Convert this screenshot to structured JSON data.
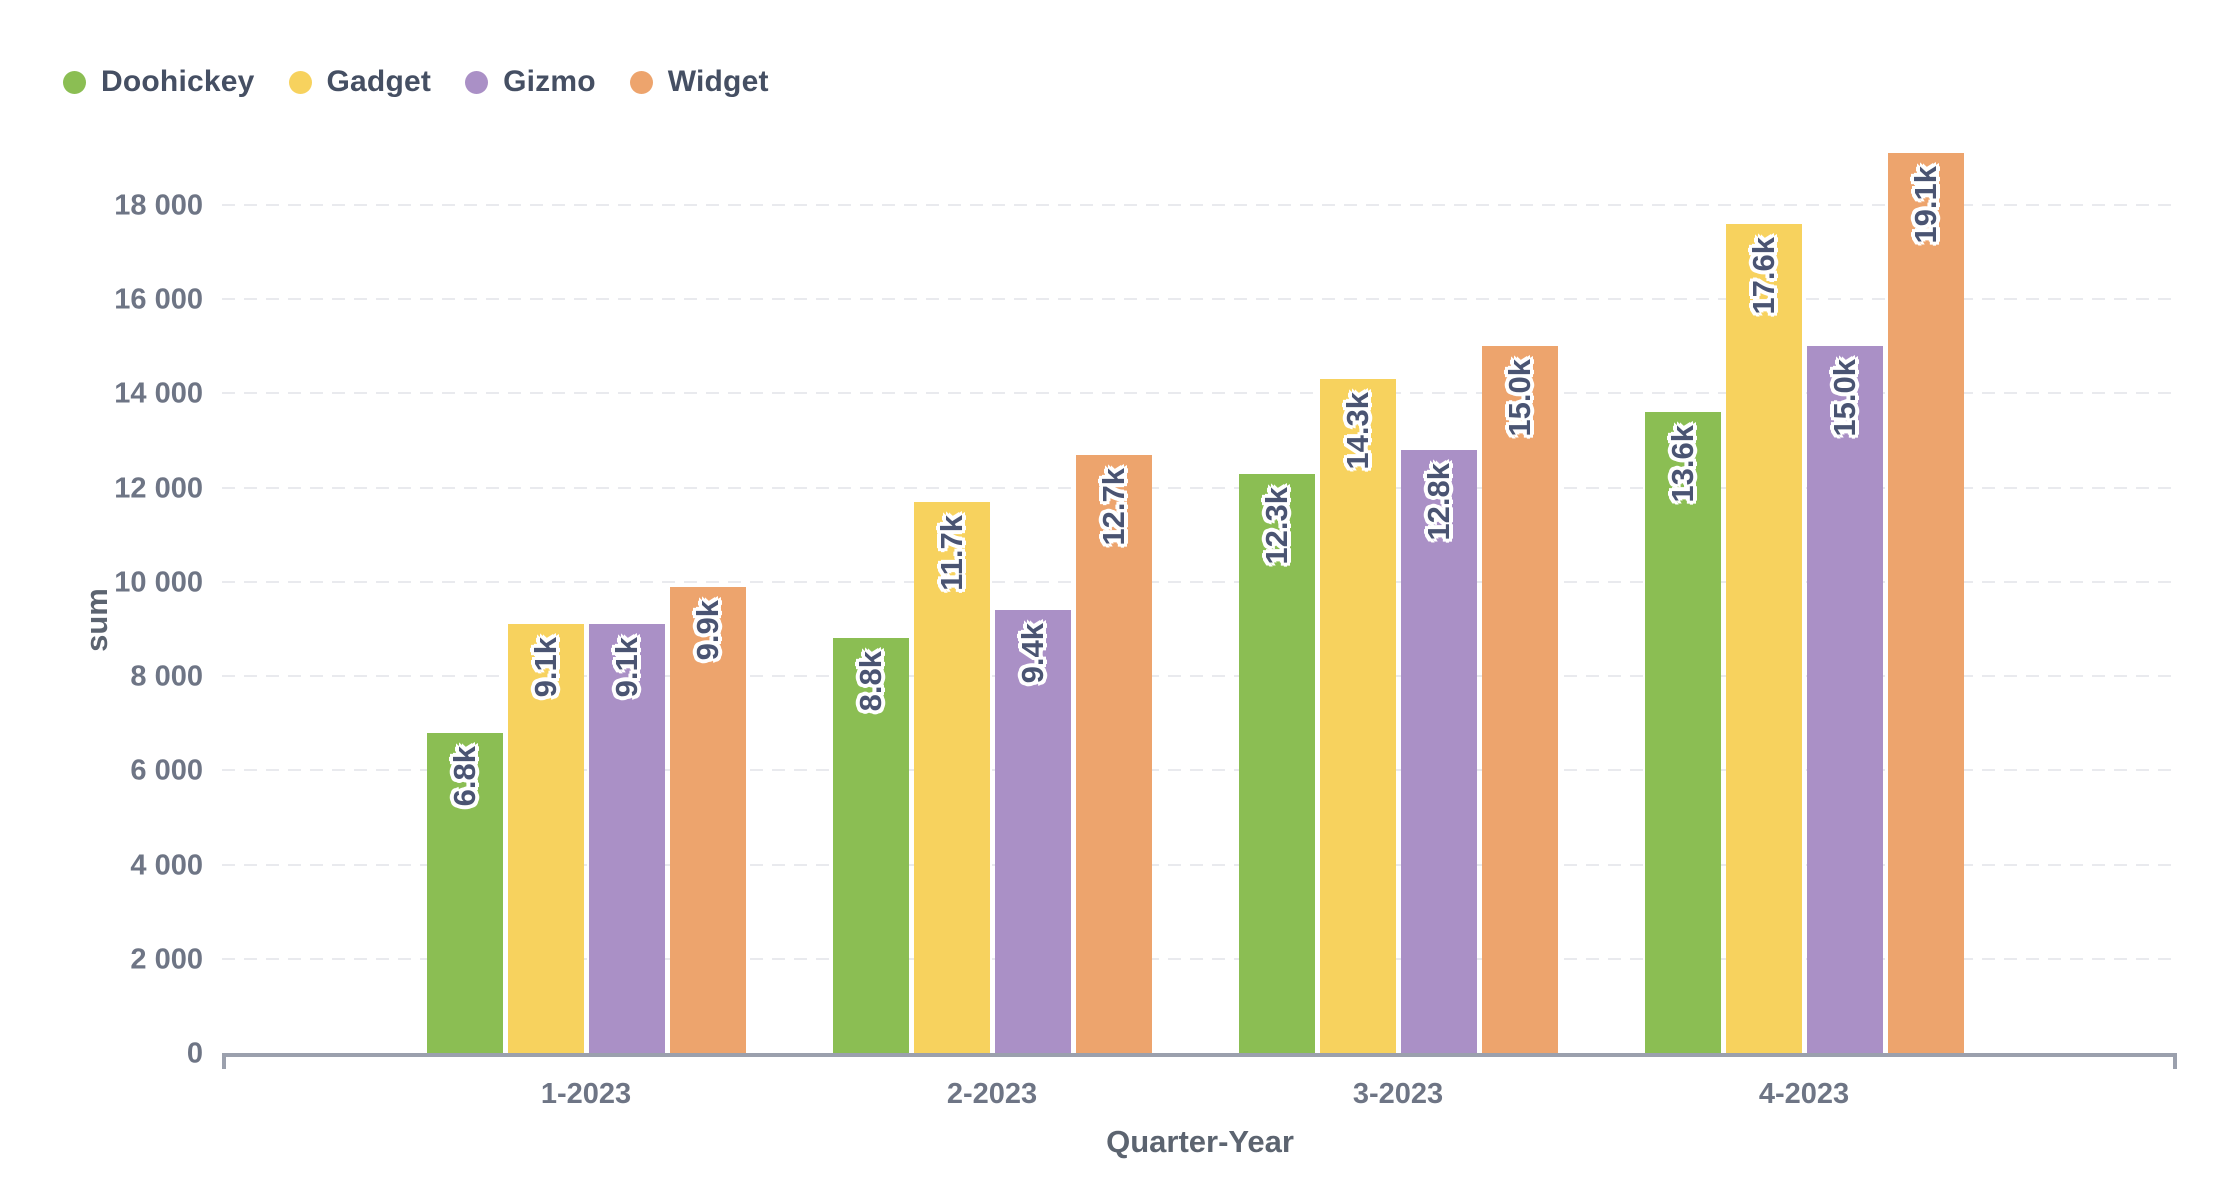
{
  "chart_data": {
    "type": "bar",
    "title": "",
    "xlabel": "Quarter-Year",
    "ylabel": "sum",
    "legend_position": "top-left",
    "grid": "horizontal-dashed",
    "ylim": [
      0,
      20200
    ],
    "categories": [
      "1-2023",
      "2-2023",
      "3-2023",
      "4-2023"
    ],
    "series": [
      {
        "name": "Doohickey",
        "color": "#8bbe53",
        "values": [
          6800,
          8800,
          12300,
          13600
        ],
        "labels": [
          "6.8k",
          "8.8k",
          "12.3k",
          "13.6k"
        ]
      },
      {
        "name": "Gadget",
        "color": "#f7d25e",
        "values": [
          9100,
          11700,
          14300,
          17600
        ],
        "labels": [
          "9.1k",
          "11.7k",
          "14.3k",
          "17.6k"
        ]
      },
      {
        "name": "Gizmo",
        "color": "#aa90c6",
        "values": [
          9100,
          9400,
          12800,
          15000
        ],
        "labels": [
          "9.1k",
          "9.4k",
          "12.8k",
          "15.0k"
        ]
      },
      {
        "name": "Widget",
        "color": "#eda46d",
        "values": [
          9900,
          12700,
          15000,
          19100
        ],
        "labels": [
          "9.9k",
          "12.7k",
          "15.0k",
          "19.1k"
        ]
      }
    ],
    "y_ticks": [
      {
        "value": 0,
        "label": "0"
      },
      {
        "value": 2000,
        "label": "2 000"
      },
      {
        "value": 4000,
        "label": "4 000"
      },
      {
        "value": 6000,
        "label": "6 000"
      },
      {
        "value": 8000,
        "label": "8 000"
      },
      {
        "value": 10000,
        "label": "10 000"
      },
      {
        "value": 12000,
        "label": "12 000"
      },
      {
        "value": 14000,
        "label": "14 000"
      },
      {
        "value": 16000,
        "label": "16 000"
      },
      {
        "value": 18000,
        "label": "18 000"
      }
    ]
  },
  "colors": {
    "background": "#ffffff",
    "axis_line": "#9ba0ad",
    "gridline": "#e9eaee",
    "tick_text": "#6e7585",
    "axis_title_text": "#5c6470",
    "legend_text": "#454f63",
    "value_label_text": "#4a5472",
    "value_label_outline": "#ffffff"
  }
}
